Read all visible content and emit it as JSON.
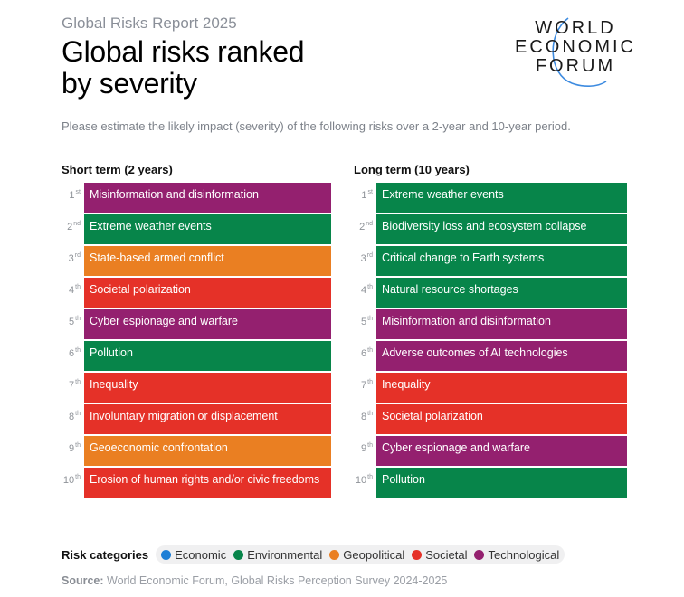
{
  "header": {
    "kicker": "Global Risks Report 2025",
    "title_line1": "Global risks ranked",
    "title_line2": "by severity",
    "subtitle": "Please estimate the likely impact (severity) of the following risks over a 2-year and 10-year period."
  },
  "logo": {
    "line1": "WORLD",
    "line2": "ECONOMIC",
    "line3": "FORUM",
    "arc_color": "#3d8be0"
  },
  "categories": {
    "Economic": "#1e7fd6",
    "Environmental": "#07854a",
    "Geopolitical": "#ea7f22",
    "Societal": "#e53128",
    "Technological": "#94206f"
  },
  "chart_data": {
    "type": "table",
    "title": "Global risks ranked by severity",
    "legend_position": "bottom-left",
    "columns": [
      {
        "heading": "Short term (2 years)",
        "rows": [
          {
            "rank": "1",
            "suffix": "st",
            "risk": "Misinformation and disinformation",
            "category": "Technological"
          },
          {
            "rank": "2",
            "suffix": "nd",
            "risk": "Extreme weather events",
            "category": "Environmental"
          },
          {
            "rank": "3",
            "suffix": "rd",
            "risk": "State-based armed conflict",
            "category": "Geopolitical"
          },
          {
            "rank": "4",
            "suffix": "th",
            "risk": "Societal polarization",
            "category": "Societal"
          },
          {
            "rank": "5",
            "suffix": "th",
            "risk": "Cyber espionage and warfare",
            "category": "Technological"
          },
          {
            "rank": "6",
            "suffix": "th",
            "risk": "Pollution",
            "category": "Environmental"
          },
          {
            "rank": "7",
            "suffix": "th",
            "risk": "Inequality",
            "category": "Societal"
          },
          {
            "rank": "8",
            "suffix": "th",
            "risk": "Involuntary migration or displacement",
            "category": "Societal"
          },
          {
            "rank": "9",
            "suffix": "th",
            "risk": "Geoeconomic confrontation",
            "category": "Geopolitical"
          },
          {
            "rank": "10",
            "suffix": "th",
            "risk": "Erosion of human rights and/or civic freedoms",
            "category": "Societal"
          }
        ]
      },
      {
        "heading": "Long term (10 years)",
        "rows": [
          {
            "rank": "1",
            "suffix": "st",
            "risk": "Extreme weather events",
            "category": "Environmental"
          },
          {
            "rank": "2",
            "suffix": "nd",
            "risk": "Biodiversity loss and ecosystem collapse",
            "category": "Environmental"
          },
          {
            "rank": "3",
            "suffix": "rd",
            "risk": "Critical change to Earth systems",
            "category": "Environmental"
          },
          {
            "rank": "4",
            "suffix": "th",
            "risk": "Natural resource shortages",
            "category": "Environmental"
          },
          {
            "rank": "5",
            "suffix": "th",
            "risk": "Misinformation and disinformation",
            "category": "Technological"
          },
          {
            "rank": "6",
            "suffix": "th",
            "risk": "Adverse outcomes of AI technologies",
            "category": "Technological"
          },
          {
            "rank": "7",
            "suffix": "th",
            "risk": "Inequality",
            "category": "Societal"
          },
          {
            "rank": "8",
            "suffix": "th",
            "risk": "Societal polarization",
            "category": "Societal"
          },
          {
            "rank": "9",
            "suffix": "th",
            "risk": "Cyber espionage and warfare",
            "category": "Technological"
          },
          {
            "rank": "10",
            "suffix": "th",
            "risk": "Pollution",
            "category": "Environmental"
          }
        ]
      }
    ]
  },
  "legend": {
    "title": "Risk categories",
    "items": [
      "Economic",
      "Environmental",
      "Geopolitical",
      "Societal",
      "Technological"
    ]
  },
  "source": {
    "label": "Source:",
    "text": " World Economic Forum, Global Risks Perception Survey 2024-2025"
  }
}
